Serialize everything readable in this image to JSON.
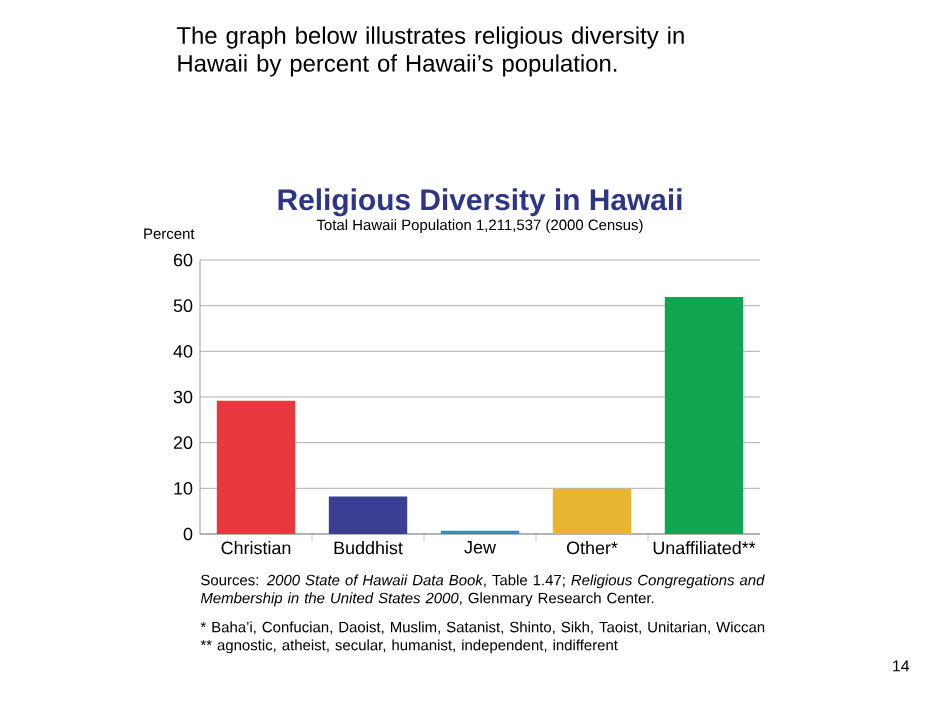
{
  "chart_data": {
    "type": "bar",
    "title": "Religious Diversity in Hawaii",
    "subtitle": "Total Hawaii Population 1,211,537 (2000 Census)",
    "ylabel": "Percent",
    "categories": [
      "Christian",
      "Buddhist",
      "Jew",
      "Other*",
      "Unaffiliated**"
    ],
    "values": [
      29.2,
      8.2,
      0.7,
      9.9,
      51.9
    ],
    "colors": [
      "#e8383d",
      "#3a3f94",
      "#2a8fc1",
      "#e9b431",
      "#10a651"
    ],
    "ylim": [
      0,
      60
    ],
    "yticks": [
      0,
      10,
      20,
      30,
      40,
      50,
      60
    ],
    "grid": "y",
    "annotations": [
      "The graph below illustrates religious diversity in Hawaii by percent of Hawaii’s population.",
      "Sources: *2000 State of Hawaii Data Book*, Table 1.47; *Religious Congregations and Membership in the United States 2000*, Glenmary Research Center.",
      "* Baha’i, Confucian, Daoist, Muslim, Satanist, Shinto, Sikh, Taoist, Unitarian, Wiccan",
      "** agnostic, atheist, secular, humanist, independent, indifferent",
      "14"
    ]
  }
}
